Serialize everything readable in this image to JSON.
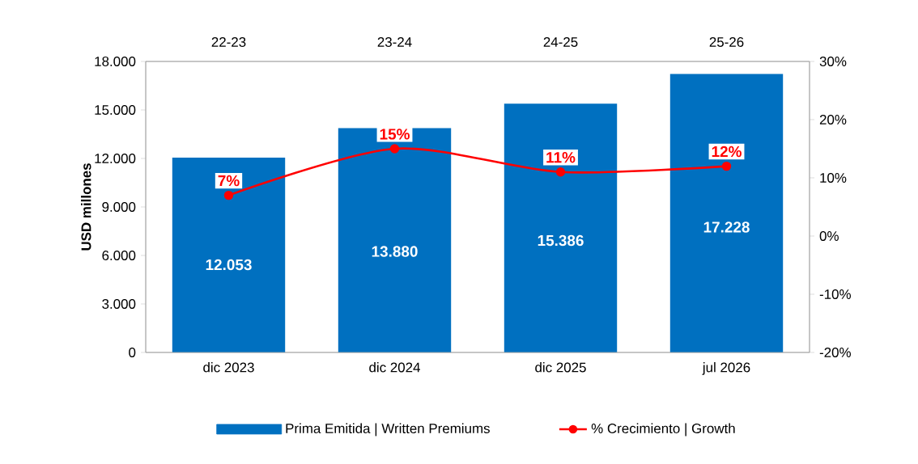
{
  "chart_data": {
    "type": "bar",
    "categories": [
      "dic 2023",
      "dic 2024",
      "dic 2025",
      "jul 2026"
    ],
    "ylabel": "USD millones",
    "ylim": [
      0,
      18000
    ],
    "yticks": [
      0,
      {
        "value": 3000,
        "label": "3.000"
      },
      {
        "value": 6000,
        "label": "6.000"
      },
      {
        "value": 9000,
        "label": "9.000"
      },
      {
        "value": 12000,
        "label": "12.000"
      },
      {
        "value": 15000,
        "label": "15.000"
      },
      {
        "value": 18000,
        "label": "18.000"
      }
    ],
    "y2lim": [
      -20,
      30
    ],
    "y2ticks": [
      {
        "value": -20,
        "label": "-20%"
      },
      {
        "value": -10,
        "label": "-10%"
      },
      {
        "value": 0,
        "label": "0%"
      },
      {
        "value": 10,
        "label": "10%"
      },
      {
        "value": 20,
        "label": "20%"
      },
      {
        "value": 30,
        "label": "30%"
      }
    ],
    "annotations": [
      "22-23",
      "23-24",
      "24-25",
      "25-26"
    ],
    "legend": "bottom",
    "series": [
      {
        "name": "Prima Emitida | Written Premiums",
        "color": "#0070c0",
        "values": [
          12053,
          13880,
          15386,
          17228
        ],
        "value_labels": [
          "12.053",
          "13.880",
          "15.386",
          "17.228"
        ]
      },
      {
        "name": "% Crecimiento | Growth",
        "type": "line",
        "axis": "y2",
        "color": "#ff0000",
        "marker": "circle",
        "values": [
          7,
          15,
          11,
          12
        ],
        "value_labels": [
          "7%",
          "15%",
          "11%",
          "12%"
        ]
      }
    ]
  }
}
